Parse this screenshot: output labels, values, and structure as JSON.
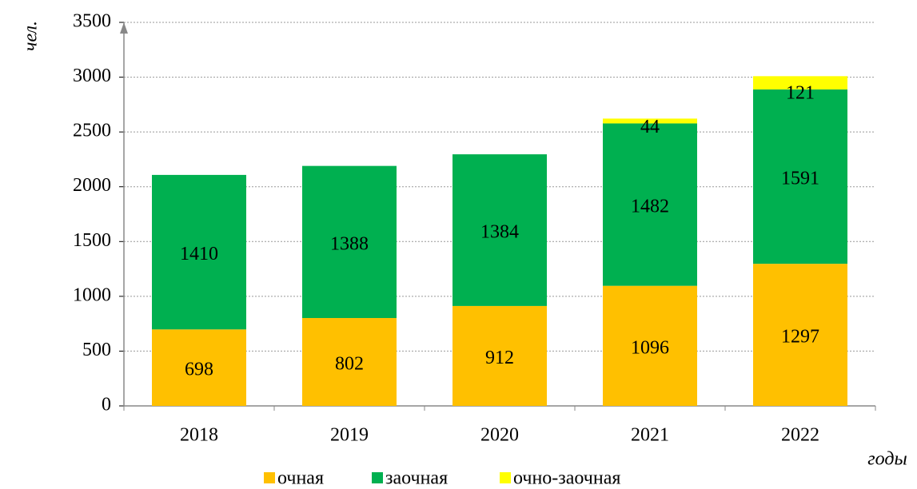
{
  "chart_data": {
    "type": "stacked_bar",
    "y_label": "чел.",
    "x_label": "годы",
    "categories": [
      "2018",
      "2019",
      "2020",
      "2021",
      "2022"
    ],
    "series": [
      {
        "name": "очная",
        "color": "#ffc000",
        "values": [
          698,
          802,
          912,
          1096,
          1297
        ]
      },
      {
        "name": "заочная",
        "color": "#00b050",
        "values": [
          1410,
          1388,
          1384,
          1482,
          1591
        ]
      },
      {
        "name": "очно-заочная",
        "color": "#ffff00",
        "values": [
          null,
          null,
          null,
          44,
          121
        ]
      }
    ],
    "ylim": [
      0,
      3500
    ],
    "yticks": [
      0,
      500,
      1000,
      1500,
      2000,
      2500,
      3000,
      3500
    ],
    "grid": true,
    "legend": "bottom"
  }
}
